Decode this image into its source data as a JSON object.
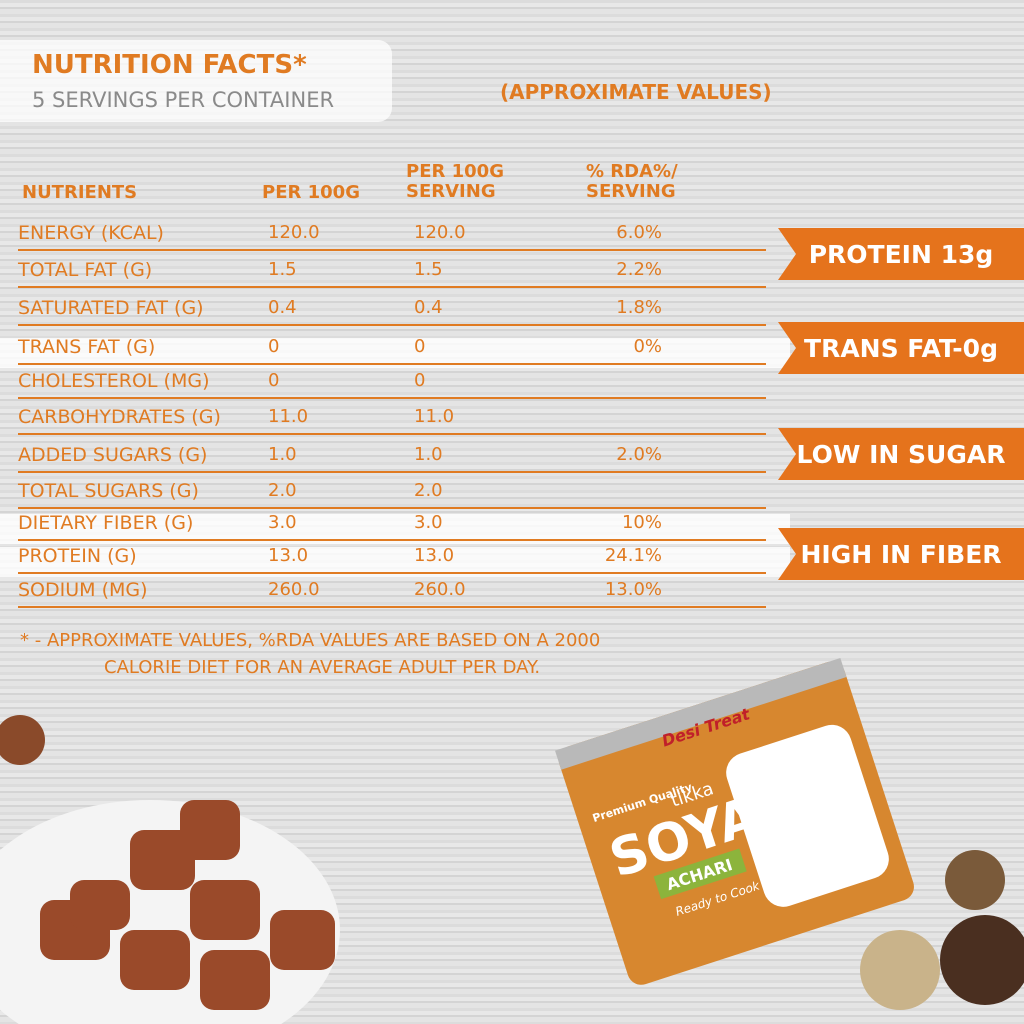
{
  "header": {
    "title": "NUTRITION FACTS*",
    "subtitle": "5 SERVINGS PER CONTAINER",
    "note": "(APPROXIMATE VALUES)"
  },
  "table": {
    "columns": [
      "NUTRIENTS",
      "PER 100G",
      "PER 100G SERVING",
      "% RDA%/ SERVING"
    ],
    "rows": [
      {
        "nutrient": "ENERGY (KCAL)",
        "per100g": "120.0",
        "serving": "120.0",
        "rda": "6.0%"
      },
      {
        "nutrient": "TOTAL FAT (G)",
        "per100g": "1.5",
        "serving": "1.5",
        "rda": "2.2%"
      },
      {
        "nutrient": "SATURATED FAT (G)",
        "per100g": "0.4",
        "serving": "0.4",
        "rda": "1.8%"
      },
      {
        "nutrient": "TRANS FAT (G)",
        "per100g": "0",
        "serving": "0",
        "rda": "0%"
      },
      {
        "nutrient": "CHOLESTEROL (MG)",
        "per100g": "0",
        "serving": "0"
      },
      {
        "nutrient": "CARBOHYDRATES (G)",
        "per100g": "11.0",
        "serving": "11.0"
      },
      {
        "nutrient": "ADDED SUGARS (G)",
        "per100g": "1.0",
        "serving": "1.0",
        "rda": "2.0%"
      },
      {
        "nutrient": "TOTAL SUGARS (G)",
        "per100g": "2.0",
        "serving": "2.0"
      },
      {
        "nutrient": "DIETARY FIBER (G)",
        "per100g": "3.0",
        "serving": "3.0",
        "rda": "10%"
      },
      {
        "nutrient": "PROTEIN (G)",
        "per100g": "13.0",
        "serving": "13.0",
        "rda": "24.1%"
      },
      {
        "nutrient": "SODIUM (MG)",
        "per100g": "260.0",
        "serving": "260.0",
        "rda": "13.0%"
      }
    ]
  },
  "badges": [
    "PROTEIN 13g",
    "TRANS FAT-0g",
    "LOW IN SUGAR",
    "HIGH IN FIBER"
  ],
  "footnote": [
    "* - APPROXIMATE VALUES, %RDA VALUES ARE BASED ON A 2000",
    "CALORIE DIET FOR AN AVERAGE ADULT PER DAY."
  ],
  "product": {
    "brand": "Desi Treat",
    "tagline": "Premium Quality",
    "name": "SOYA",
    "sub": "tikka",
    "flavor": "ACHARI",
    "claim": "Ready to Cook"
  }
}
